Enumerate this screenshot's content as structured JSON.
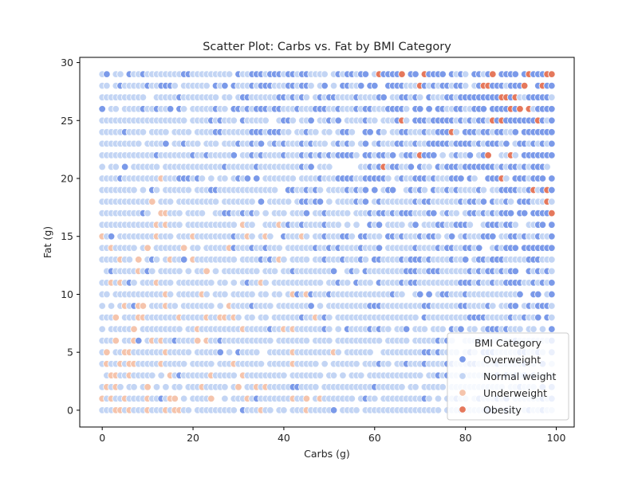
{
  "chart_data": {
    "type": "scatter",
    "title": "Scatter Plot: Carbs vs. Fat by BMI Category",
    "xlabel": "Carbs (g)",
    "ylabel": "Fat (g)",
    "xlim": [
      -4.95,
      103.95
    ],
    "ylim": [
      -1.45,
      30.45
    ],
    "x_ticks": [
      0,
      20,
      40,
      60,
      80,
      100
    ],
    "y_ticks": [
      0,
      5,
      10,
      15,
      20,
      25,
      30
    ],
    "grid": false,
    "legend": {
      "title": "BMI Category",
      "placement": "lower-right",
      "entries": [
        "Overweight",
        "Normal weight",
        "Underweight",
        "Obesity"
      ]
    },
    "x_values": "integers 0 to 99",
    "y_values": "integers 0 to 29",
    "series": [
      {
        "name": "Overweight",
        "color": "#7b9ae9",
        "region": "dominant where carbs and fat are both moderate to high"
      },
      {
        "name": "Normal weight",
        "color": "#c3d5f4",
        "region": "dominant across low-to-mid carbs and low fat"
      },
      {
        "name": "Underweight",
        "color": "#f5c4ac",
        "region": "low carbs with low fat"
      },
      {
        "name": "Obesity",
        "color": "#e5785c",
        "points": [
          [
            61,
            29
          ],
          [
            66,
            29
          ],
          [
            71,
            29
          ],
          [
            86,
            29
          ],
          [
            94,
            29
          ],
          [
            98,
            29
          ],
          [
            99,
            29
          ],
          [
            70,
            28
          ],
          [
            84,
            28
          ],
          [
            85,
            28
          ],
          [
            93,
            28
          ],
          [
            97,
            28
          ],
          [
            88,
            27
          ],
          [
            89,
            27
          ],
          [
            91,
            27
          ],
          [
            90,
            26
          ],
          [
            92,
            26
          ],
          [
            94,
            26
          ],
          [
            66,
            25
          ],
          [
            86,
            25
          ],
          [
            88,
            25
          ],
          [
            96,
            25
          ],
          [
            77,
            24
          ],
          [
            70,
            22
          ],
          [
            85,
            22
          ],
          [
            90,
            22
          ],
          [
            62,
            21
          ],
          [
            88,
            20
          ],
          [
            95,
            19
          ],
          [
            98,
            19
          ],
          [
            98,
            18
          ],
          [
            99,
            17
          ]
        ]
      }
    ]
  }
}
